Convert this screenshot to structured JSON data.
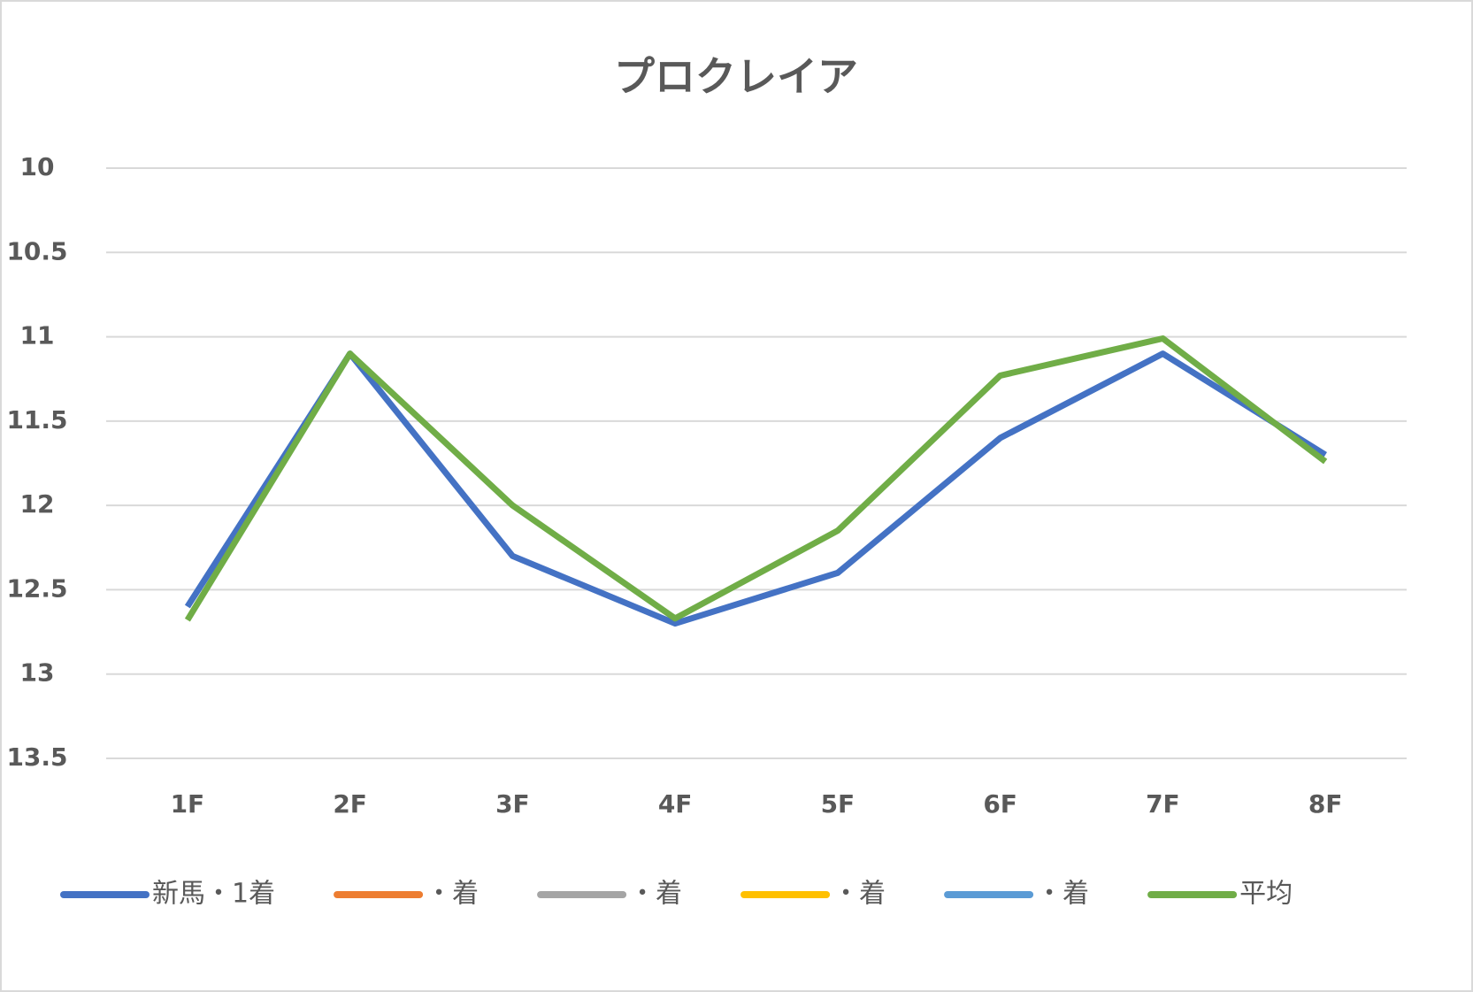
{
  "chart_data": {
    "type": "line",
    "title": "プロクレイア",
    "categories": [
      "1F",
      "2F",
      "3F",
      "4F",
      "5F",
      "6F",
      "7F",
      "8F"
    ],
    "series": [
      {
        "name": "新馬・1着",
        "color": "#4472c4",
        "values": [
          12.6,
          11.1,
          12.3,
          12.7,
          12.4,
          11.6,
          11.1,
          11.7
        ]
      },
      {
        "name": "・着",
        "color": "#ed7d31",
        "values": [
          null,
          null,
          null,
          null,
          null,
          null,
          null,
          null
        ]
      },
      {
        "name": "・着",
        "color": "#a5a5a5",
        "values": [
          null,
          null,
          null,
          null,
          null,
          null,
          null,
          null
        ]
      },
      {
        "name": "・着",
        "color": "#ffc000",
        "values": [
          null,
          null,
          null,
          null,
          null,
          null,
          null,
          null
        ]
      },
      {
        "name": "・着",
        "color": "#5b9bd5",
        "values": [
          null,
          null,
          null,
          null,
          null,
          null,
          null,
          null
        ]
      },
      {
        "name": "平均",
        "color": "#70ad47",
        "values": [
          12.68,
          11.1,
          12.0,
          12.67,
          12.15,
          11.23,
          11.01,
          11.74
        ]
      }
    ],
    "ylim": [
      10,
      13.5
    ],
    "y_inverted": true,
    "yticks": [
      10,
      10.5,
      11,
      11.5,
      12,
      12.5,
      13,
      13.5
    ],
    "grid": true,
    "legend": "bottom"
  }
}
